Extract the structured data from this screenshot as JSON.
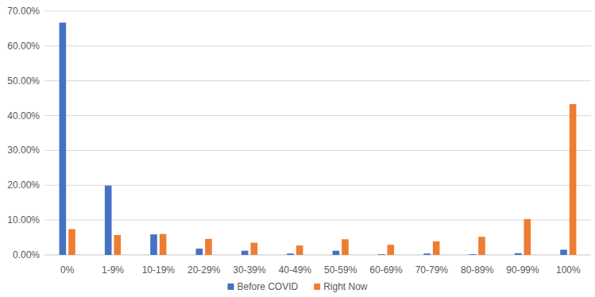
{
  "chart_data": {
    "type": "bar",
    "categories": [
      "0%",
      "1-9%",
      "10-19%",
      "20-29%",
      "30-39%",
      "40-49%",
      "50-59%",
      "60-69%",
      "70-79%",
      "80-89%",
      "90-99%",
      "100%"
    ],
    "series": [
      {
        "name": "Before COVID",
        "color": "#4472c4",
        "values": [
          66.7,
          19.9,
          5.9,
          1.8,
          1.2,
          0.4,
          1.2,
          0.2,
          0.4,
          0.2,
          0.5,
          1.5
        ]
      },
      {
        "name": "Right Now",
        "color": "#ed7d31",
        "values": [
          7.4,
          5.7,
          6.0,
          4.6,
          3.5,
          2.7,
          4.5,
          2.9,
          3.9,
          5.2,
          10.3,
          43.3
        ]
      }
    ],
    "ylim": [
      0,
      70
    ],
    "yticks": [
      {
        "value": 0,
        "label": "0.00%"
      },
      {
        "value": 10,
        "label": "10.00%"
      },
      {
        "value": 20,
        "label": "20.00%"
      },
      {
        "value": 30,
        "label": "30.00%"
      },
      {
        "value": 40,
        "label": "40.00%"
      },
      {
        "value": 50,
        "label": "50.00%"
      },
      {
        "value": 60,
        "label": "60.00%"
      },
      {
        "value": 70,
        "label": "70.00%"
      }
    ],
    "grid": true,
    "legend": "bottom"
  }
}
